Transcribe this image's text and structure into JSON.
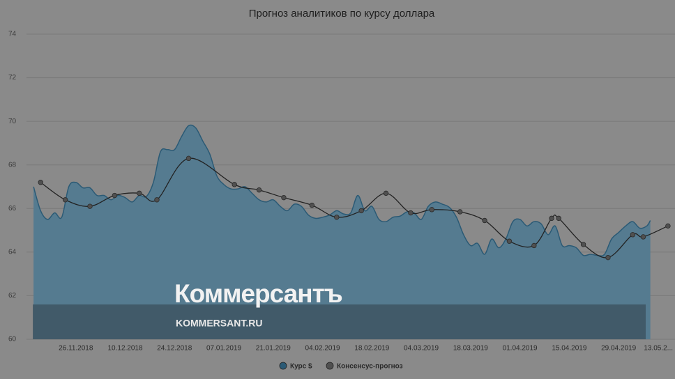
{
  "chart_data": {
    "type": "line",
    "title": "Прогноз аналитиков по курсу доллара",
    "xlim": [
      "12.11.2018",
      "15.05.2019"
    ],
    "xticks": [
      "26.11.2018",
      "10.12.2018",
      "24.12.2018",
      "07.01.2019",
      "21.01.2019",
      "04.02.2019",
      "18.02.2019",
      "04.03.2019",
      "18.03.2019",
      "01.04.2019",
      "15.04.2019",
      "29.04.2019",
      {
        "value": "13.05.2019",
        "label": "13.05.2..."
      }
    ],
    "ylim": [
      60,
      74
    ],
    "yticks": [
      60,
      62,
      64,
      66,
      68,
      70,
      72,
      74
    ],
    "grid": true,
    "background": "#8a8a8a",
    "series": [
      {
        "name": "Курс $",
        "type": "area",
        "color": "#2b5a75",
        "fill": "#557b90",
        "x": [
          "14.11.2018",
          "16.11.2018",
          "18.11.2018",
          "20.11.2018",
          "22.11.2018",
          "24.11.2018",
          "26.11.2018",
          "28.11.2018",
          "30.11.2018",
          "02.12.2018",
          "04.12.2018",
          "06.12.2018",
          "08.12.2018",
          "10.12.2018",
          "12.12.2018",
          "14.12.2018",
          "16.12.2018",
          "18.12.2018",
          "20.12.2018",
          "22.12.2018",
          "24.12.2018",
          "26.12.2018",
          "28.12.2018",
          "30.12.2018",
          "01.01.2019",
          "03.01.2019",
          "05.01.2019",
          "07.01.2019",
          "09.01.2019",
          "11.01.2019",
          "13.01.2019",
          "15.01.2019",
          "17.01.2019",
          "19.01.2019",
          "21.01.2019",
          "23.01.2019",
          "25.01.2019",
          "27.01.2019",
          "29.01.2019",
          "31.01.2019",
          "02.02.2019",
          "04.02.2019",
          "06.02.2019",
          "08.02.2019",
          "10.02.2019",
          "12.02.2019",
          "14.02.2019",
          "16.02.2019",
          "18.02.2019",
          "20.02.2019",
          "22.02.2019",
          "24.02.2019",
          "26.02.2019",
          "28.02.2019",
          "02.03.2019",
          "04.03.2019",
          "06.03.2019",
          "08.03.2019",
          "10.03.2019",
          "12.03.2019",
          "14.03.2019",
          "16.03.2019",
          "18.03.2019",
          "20.03.2019",
          "22.03.2019",
          "24.03.2019",
          "26.03.2019",
          "28.03.2019",
          "30.03.2019",
          "01.04.2019",
          "03.04.2019",
          "05.04.2019",
          "07.04.2019",
          "09.04.2019",
          "11.04.2019",
          "13.04.2019",
          "15.04.2019",
          "17.04.2019",
          "19.04.2019",
          "21.04.2019",
          "23.04.2019",
          "25.04.2019",
          "27.04.2019",
          "29.04.2019",
          "01.05.2019",
          "03.05.2019",
          "05.05.2019",
          "07.05.2019",
          "08.05.2019"
        ],
        "values": [
          67.0,
          65.9,
          65.5,
          65.8,
          65.6,
          67.0,
          67.2,
          66.95,
          66.95,
          66.6,
          66.6,
          66.4,
          66.6,
          66.5,
          66.3,
          66.6,
          66.55,
          67.2,
          68.6,
          68.7,
          68.7,
          69.3,
          69.8,
          69.7,
          69.1,
          68.5,
          67.5,
          67.1,
          66.9,
          66.9,
          67.0,
          66.7,
          66.4,
          66.3,
          66.4,
          66.1,
          65.9,
          66.2,
          66.1,
          65.7,
          65.55,
          65.6,
          65.7,
          65.9,
          65.75,
          65.8,
          66.6,
          65.9,
          66.1,
          65.5,
          65.4,
          65.6,
          65.65,
          65.85,
          65.8,
          65.5,
          66.1,
          66.3,
          66.2,
          66.05,
          65.6,
          64.8,
          64.3,
          64.4,
          63.9,
          64.6,
          64.2,
          64.6,
          65.4,
          65.5,
          65.2,
          65.4,
          65.3,
          64.8,
          65.2,
          64.3,
          64.3,
          64.2,
          63.85,
          63.9,
          63.85,
          63.9,
          64.6,
          64.9,
          65.2,
          65.4,
          65.1,
          65.2,
          65.45
        ]
      },
      {
        "name": "Консенсус-прогноз",
        "type": "line",
        "color": "#222222",
        "marker": "#505050",
        "x": [
          "16.11.2018",
          "23.11.2018",
          "30.11.2018",
          "07.12.2018",
          "14.12.2018",
          "19.12.2018",
          "28.12.2018",
          "10.01.2019",
          "17.01.2019",
          "24.01.2019",
          "01.02.2019",
          "08.02.2019",
          "15.02.2019",
          "22.02.2019",
          "01.03.2019",
          "07.03.2019",
          "15.03.2019",
          "22.03.2019",
          "29.03.2019",
          "05.04.2019",
          "10.04.2019",
          "12.04.2019",
          "19.04.2019",
          "26.04.2019",
          "03.05.2019",
          "06.05.2019",
          "13.05.2019"
        ],
        "values": [
          67.2,
          66.4,
          66.1,
          66.6,
          66.7,
          66.4,
          68.3,
          67.1,
          66.85,
          66.5,
          66.15,
          65.6,
          65.9,
          66.7,
          65.8,
          65.95,
          65.85,
          65.45,
          64.5,
          64.3,
          65.55,
          65.55,
          64.35,
          63.75,
          64.8,
          64.7,
          65.2
        ]
      }
    ]
  },
  "watermark": {
    "brand": "Коммерсантъ",
    "site": "KOMMERSANT.RU"
  }
}
